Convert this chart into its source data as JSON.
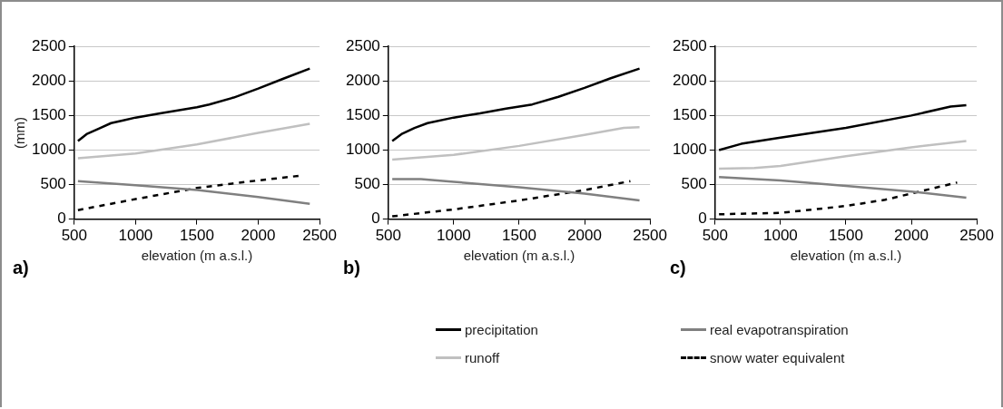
{
  "chart_data": [
    {
      "type": "line",
      "title": "a)",
      "xlabel": "elevation (m a.s.l.)",
      "ylabel": "(mm)",
      "xlim": [
        500,
        2500
      ],
      "xticks": [
        500,
        1000,
        1500,
        2000,
        2500
      ],
      "ylim": [
        0,
        2500
      ],
      "yticks": [
        0,
        500,
        1000,
        1500,
        2000,
        2500
      ],
      "grid": "y",
      "legend": false,
      "series": [
        {
          "color": "#000000",
          "x": [
            530,
            600,
            700,
            800,
            900,
            1000,
            1200,
            1400,
            1500,
            1600,
            1800,
            2000,
            2200,
            2420
          ],
          "values": [
            1130,
            1230,
            1310,
            1390,
            1430,
            1470,
            1530,
            1590,
            1620,
            1660,
            1760,
            1890,
            2030,
            2180
          ]
        },
        {
          "color": "#808080",
          "x": [
            530,
            1000,
            1500,
            2000,
            2420
          ],
          "values": [
            550,
            490,
            420,
            320,
            220
          ]
        },
        {
          "color": "#c0c0c0",
          "x": [
            530,
            1000,
            1500,
            2000,
            2420
          ],
          "values": [
            880,
            950,
            1080,
            1250,
            1380
          ]
        },
        {
          "color": "#000000",
          "line_style": "dashed",
          "x": [
            530,
            1000,
            1500,
            2000,
            2350
          ],
          "values": [
            130,
            290,
            450,
            560,
            630
          ]
        }
      ]
    },
    {
      "type": "line",
      "title": "b)",
      "xlabel": "elevation (m a.s.l.)",
      "xlim": [
        500,
        2500
      ],
      "xticks": [
        500,
        1000,
        1500,
        2000,
        2500
      ],
      "ylim": [
        0,
        2500
      ],
      "yticks": [
        0,
        500,
        1000,
        1500,
        2000,
        2500
      ],
      "grid": "y",
      "legend": false,
      "series": [
        {
          "color": "#000000",
          "x": [
            530,
            600,
            700,
            800,
            1000,
            1200,
            1400,
            1600,
            1800,
            2000,
            2200,
            2420
          ],
          "values": [
            1130,
            1230,
            1320,
            1390,
            1470,
            1530,
            1600,
            1660,
            1770,
            1900,
            2040,
            2180
          ]
        },
        {
          "color": "#808080",
          "x": [
            530,
            750,
            1000,
            1500,
            2000,
            2420
          ],
          "values": [
            580,
            580,
            540,
            460,
            370,
            270
          ]
        },
        {
          "color": "#c0c0c0",
          "x": [
            530,
            1000,
            1500,
            2000,
            2300,
            2420
          ],
          "values": [
            860,
            930,
            1060,
            1220,
            1320,
            1330
          ]
        },
        {
          "color": "#000000",
          "line_style": "dashed",
          "x": [
            530,
            1000,
            1500,
            2000,
            2350
          ],
          "values": [
            40,
            140,
            270,
            420,
            550
          ]
        }
      ]
    },
    {
      "type": "line",
      "title": "c)",
      "xlabel": "elevation (m a.s.l.)",
      "xlim": [
        500,
        2500
      ],
      "xticks": [
        500,
        1000,
        1500,
        2000,
        2500
      ],
      "ylim": [
        0,
        2500
      ],
      "yticks": [
        0,
        500,
        1000,
        1500,
        2000,
        2500
      ],
      "grid": "y",
      "legend": "bottom",
      "series": [
        {
          "name": "precipitation",
          "color": "#000000",
          "x": [
            530,
            700,
            1000,
            1500,
            2000,
            2300,
            2420
          ],
          "values": [
            1000,
            1090,
            1180,
            1320,
            1500,
            1630,
            1650
          ]
        },
        {
          "name": "real evapotranspiration",
          "color": "#808080",
          "x": [
            530,
            1000,
            1500,
            2000,
            2420
          ],
          "values": [
            610,
            560,
            480,
            400,
            310
          ]
        },
        {
          "name": "runoff",
          "color": "#c0c0c0",
          "x": [
            530,
            800,
            1000,
            1500,
            2000,
            2420
          ],
          "values": [
            730,
            740,
            770,
            910,
            1040,
            1130
          ]
        },
        {
          "name": "snow water equivalent",
          "color": "#000000",
          "line_style": "dashed",
          "x": [
            530,
            1000,
            1300,
            1500,
            1800,
            2000,
            2350
          ],
          "values": [
            70,
            90,
            150,
            190,
            280,
            370,
            530
          ]
        }
      ]
    }
  ]
}
